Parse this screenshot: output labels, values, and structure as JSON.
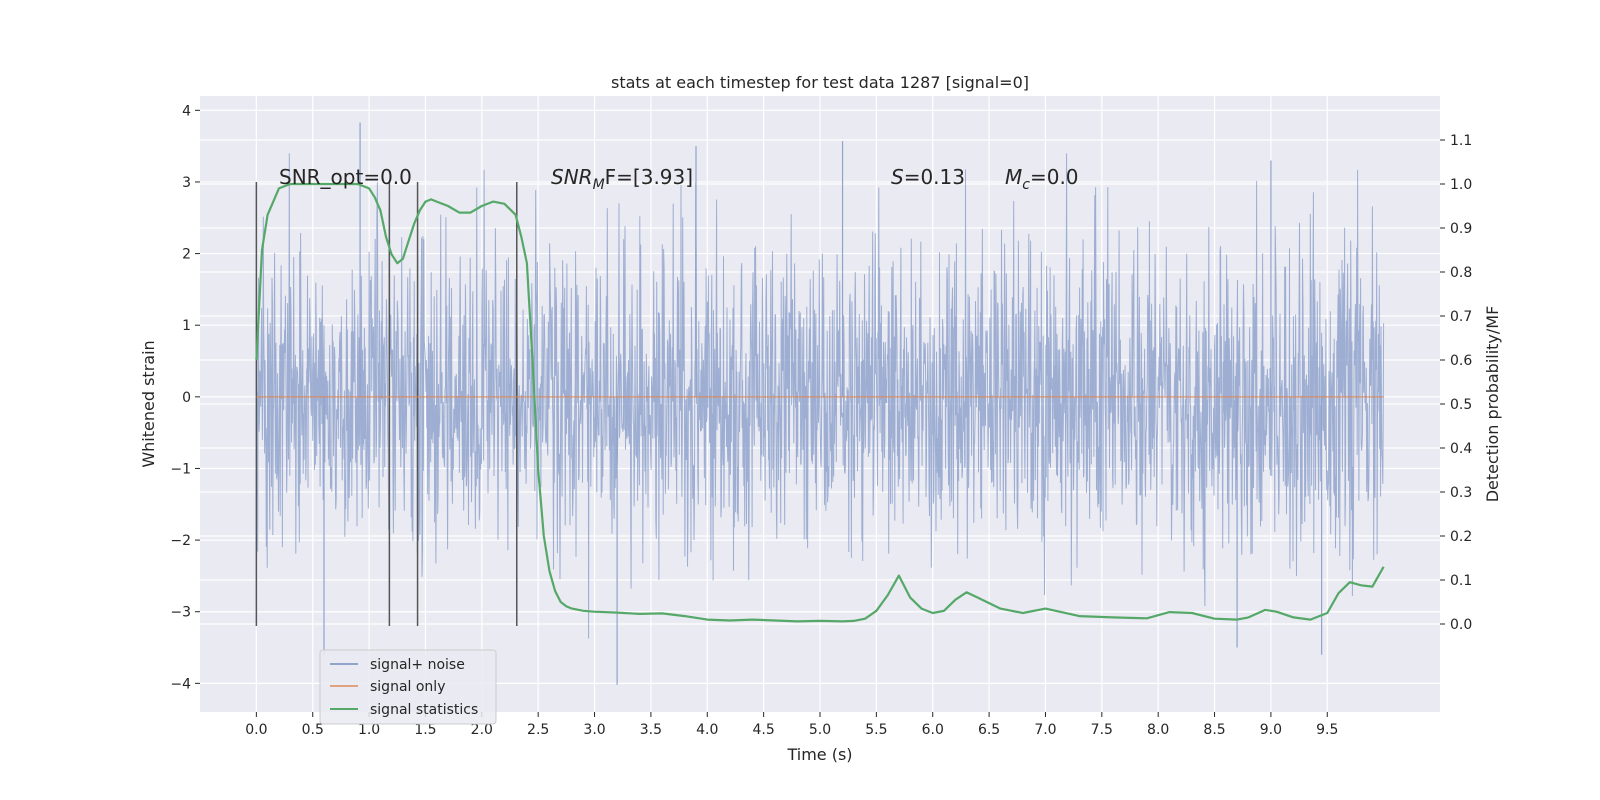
{
  "chart_data": {
    "type": "line",
    "title": "stats at each timestep for test data 1287 [signal=0]",
    "xlabel": "Time (s)",
    "ylabel_left": "Whitened strain",
    "ylabel_right": "Detection probability/MF",
    "xlim": [
      -0.5,
      10.5
    ],
    "ylim_left": [
      -4.4,
      4.2
    ],
    "ylim_right": [
      -0.2,
      1.2
    ],
    "x_ticks": [
      "0.0",
      "0.5",
      "1.0",
      "1.5",
      "2.0",
      "2.5",
      "3.0",
      "3.5",
      "4.0",
      "4.5",
      "5.0",
      "5.5",
      "6.0",
      "6.5",
      "7.0",
      "7.5",
      "8.0",
      "8.5",
      "9.0",
      "9.5"
    ],
    "y_ticks_left": [
      "−4",
      "−3",
      "−2",
      "−1",
      "0",
      "1",
      "2",
      "3",
      "4"
    ],
    "y_ticks_right": [
      "0.0",
      "0.1",
      "0.2",
      "0.3",
      "0.4",
      "0.5",
      "0.6",
      "0.7",
      "0.8",
      "0.9",
      "1.0",
      "1.1"
    ],
    "grid": true,
    "legend_position": "lower-left",
    "colors": {
      "background": "#eaeaf2",
      "noise": "#8fa3cc",
      "signal_only": "#dd8452",
      "statistics": "#55a868",
      "vline": "#555555"
    },
    "series": [
      {
        "name": "signal+ noise",
        "axis": "left",
        "x_range": [
          0.0,
          10.0
        ],
        "approx_envelope": [
          -2.5,
          2.5
        ],
        "extremes": [
          {
            "x": 0.92,
            "y": 3.83
          },
          {
            "x": 3.2,
            "y": -4.02
          },
          {
            "x": 0.6,
            "y": -3.6
          },
          {
            "x": 3.9,
            "y": 3.5
          },
          {
            "x": 5.2,
            "y": 3.57
          },
          {
            "x": 9.0,
            "y": 3.3
          },
          {
            "x": 9.45,
            "y": -3.6
          },
          {
            "x": 8.7,
            "y": -3.5
          }
        ]
      },
      {
        "name": "signal only",
        "axis": "left",
        "x": [
          0.0,
          10.0
        ],
        "values": [
          0.0,
          0.0
        ]
      },
      {
        "name": "signal statistics",
        "axis": "right",
        "x": [
          0.0,
          0.05,
          0.1,
          0.15,
          0.2,
          0.3,
          0.4,
          0.5,
          0.6,
          0.7,
          0.8,
          0.9,
          1.0,
          1.05,
          1.1,
          1.15,
          1.2,
          1.25,
          1.3,
          1.35,
          1.4,
          1.45,
          1.5,
          1.55,
          1.6,
          1.7,
          1.8,
          1.9,
          2.0,
          2.1,
          2.2,
          2.3,
          2.35,
          2.4,
          2.45,
          2.5,
          2.55,
          2.6,
          2.65,
          2.7,
          2.75,
          2.8,
          2.9,
          3.0,
          3.2,
          3.4,
          3.6,
          3.8,
          4.0,
          4.2,
          4.4,
          4.6,
          4.8,
          5.0,
          5.2,
          5.3,
          5.4,
          5.5,
          5.6,
          5.7,
          5.8,
          5.9,
          6.0,
          6.1,
          6.2,
          6.3,
          6.4,
          6.6,
          6.8,
          7.0,
          7.3,
          7.6,
          7.9,
          8.1,
          8.3,
          8.5,
          8.7,
          8.8,
          8.95,
          9.05,
          9.2,
          9.35,
          9.5,
          9.6,
          9.7,
          9.8,
          9.9,
          10.0
        ],
        "values": [
          0.6,
          0.85,
          0.93,
          0.96,
          0.99,
          1.0,
          1.0,
          1.0,
          1.0,
          1.0,
          1.0,
          1.0,
          0.99,
          0.97,
          0.94,
          0.88,
          0.84,
          0.82,
          0.83,
          0.87,
          0.91,
          0.94,
          0.96,
          0.965,
          0.96,
          0.95,
          0.935,
          0.935,
          0.95,
          0.96,
          0.955,
          0.93,
          0.88,
          0.82,
          0.6,
          0.35,
          0.2,
          0.12,
          0.075,
          0.05,
          0.04,
          0.035,
          0.03,
          0.028,
          0.026,
          0.023,
          0.024,
          0.018,
          0.01,
          0.008,
          0.01,
          0.008,
          0.006,
          0.007,
          0.006,
          0.007,
          0.012,
          0.03,
          0.065,
          0.11,
          0.06,
          0.035,
          0.025,
          0.03,
          0.055,
          0.072,
          0.06,
          0.035,
          0.025,
          0.035,
          0.018,
          0.015,
          0.013,
          0.027,
          0.025,
          0.012,
          0.01,
          0.015,
          0.032,
          0.028,
          0.015,
          0.01,
          0.025,
          0.07,
          0.095,
          0.088,
          0.085,
          0.13
        ]
      }
    ],
    "vertical_markers": [
      0.0,
      1.18,
      1.43,
      2.31
    ],
    "vertical_marker_range": [
      -3.2,
      3.0
    ],
    "annotations": {
      "snr_opt": "SNR_opt=0.0",
      "snr_mf_base": "SNR",
      "snr_mf_sub": "M",
      "snr_mf_rest": "F=[3.93]",
      "s_base": "S",
      "s_rest": "=0.13",
      "mc_base": "M",
      "mc_sub": "c",
      "mc_rest": "=0.0"
    },
    "legend": [
      "signal+ noise",
      "signal only",
      "signal statistics"
    ]
  }
}
